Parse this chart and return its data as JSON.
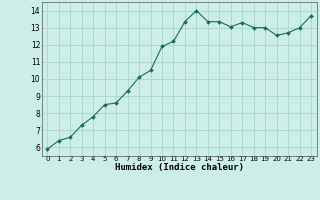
{
  "x": [
    0,
    1,
    2,
    3,
    4,
    5,
    6,
    7,
    8,
    9,
    10,
    11,
    12,
    13,
    14,
    15,
    16,
    17,
    18,
    19,
    20,
    21,
    22,
    23
  ],
  "y": [
    5.9,
    6.4,
    6.6,
    7.3,
    7.8,
    8.5,
    8.6,
    9.3,
    10.1,
    10.5,
    11.9,
    12.2,
    13.35,
    14.0,
    13.35,
    13.35,
    13.05,
    13.3,
    13.0,
    13.0,
    12.55,
    12.7,
    13.0,
    13.7
  ],
  "xlabel": "Humidex (Indice chaleur)",
  "background_color": "#cceee8",
  "grid_color": "#b0d8d0",
  "line_color": "#1a6b5a",
  "marker_color": "#1a6b5a",
  "xlim": [
    -0.5,
    23.5
  ],
  "ylim": [
    5.5,
    14.5
  ],
  "yticks": [
    6,
    7,
    8,
    9,
    10,
    11,
    12,
    13,
    14
  ],
  "xticks": [
    0,
    1,
    2,
    3,
    4,
    5,
    6,
    7,
    8,
    9,
    10,
    11,
    12,
    13,
    14,
    15,
    16,
    17,
    18,
    19,
    20,
    21,
    22,
    23
  ]
}
